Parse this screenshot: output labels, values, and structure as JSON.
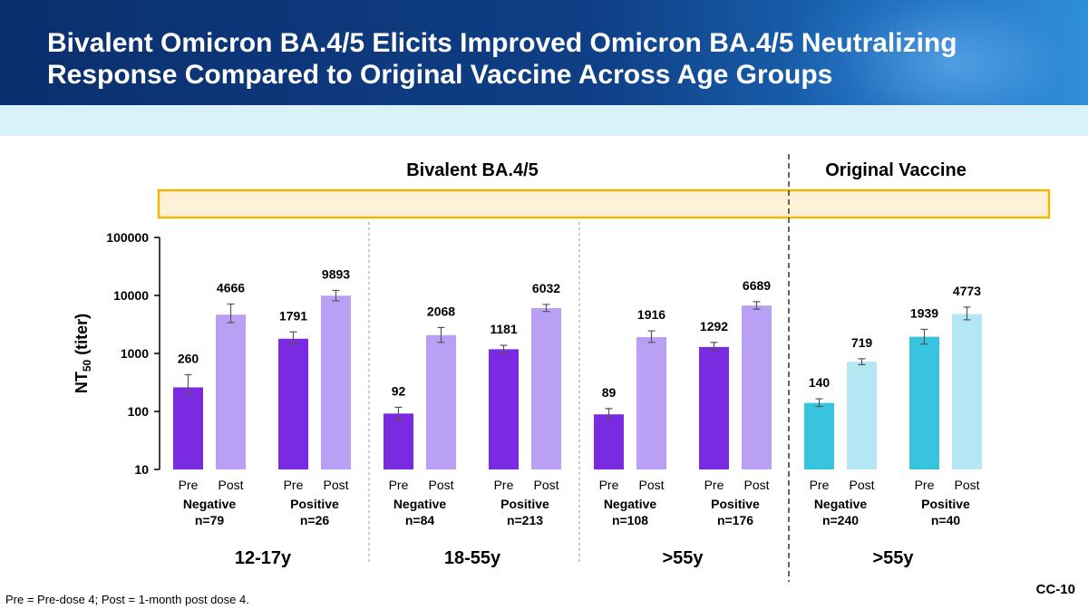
{
  "slide": {
    "title": "Bivalent Omicron BA.4/5 Elicits Improved Omicron BA.4/5 Neutralizing\nResponse Compared to Original Vaccine Across Age Groups",
    "footnote": "Pre = Pre-dose 4; Post = 1-month post dose 4.",
    "code": "CC-10"
  },
  "colors": {
    "bivalent_pre": "#7a2ae0",
    "bivalent_post": "#b9a0f4",
    "original_pre": "#38c3de",
    "original_post": "#b4e7f4",
    "legend_box_fill": "#fdf1d8",
    "legend_box_border": "#f2b800"
  },
  "chart_data": {
    "type": "bar",
    "yscale": "log",
    "ylim": [
      10,
      100000
    ],
    "yticks": [
      "10",
      "100",
      "1000",
      "10000",
      "100000"
    ],
    "ylabel": "NT",
    "ylabel_sub": "50",
    "ylabel_tail": " (titer)",
    "sections": [
      "Bivalent BA.4/5",
      "Original Vaccine"
    ],
    "ages": [
      "12-17y",
      "18-55y",
      ">55y",
      ">55y"
    ],
    "groups": [
      {
        "status": "Negative",
        "n": "n=79",
        "age": 0,
        "vaccine": "bivalent",
        "bars": [
          {
            "label": "Pre",
            "value": 260,
            "display": "260",
            "ci": [
              200,
              430
            ]
          },
          {
            "label": "Post",
            "value": 4666,
            "display": "4666",
            "ci": [
              3400,
              7100
            ]
          }
        ]
      },
      {
        "status": "Positive",
        "n": "n=26",
        "age": 0,
        "vaccine": "bivalent",
        "bars": [
          {
            "label": "Pre",
            "value": 1791,
            "display": "1791",
            "ci": [
              1450,
              2350
            ]
          },
          {
            "label": "Post",
            "value": 9893,
            "display": "9893",
            "ci": [
              8100,
              12200
            ]
          }
        ]
      },
      {
        "status": "Negative",
        "n": "n=84",
        "age": 1,
        "vaccine": "bivalent",
        "bars": [
          {
            "label": "Pre",
            "value": 92,
            "display": "92",
            "ci": [
              73,
              118
            ]
          },
          {
            "label": "Post",
            "value": 2068,
            "display": "2068",
            "ci": [
              1550,
              2800
            ]
          }
        ]
      },
      {
        "status": "Positive",
        "n": "n=213",
        "age": 1,
        "vaccine": "bivalent",
        "bars": [
          {
            "label": "Pre",
            "value": 1181,
            "display": "1181",
            "ci": [
              1030,
              1380
            ]
          },
          {
            "label": "Post",
            "value": 6032,
            "display": "6032",
            "ci": [
              5300,
              7000
            ]
          }
        ]
      },
      {
        "status": "Negative",
        "n": "n=108",
        "age": 2,
        "vaccine": "bivalent",
        "bars": [
          {
            "label": "Pre",
            "value": 89,
            "display": "89",
            "ci": [
              72,
              112
            ]
          },
          {
            "label": "Post",
            "value": 1916,
            "display": "1916",
            "ci": [
              1550,
              2450
            ]
          }
        ]
      },
      {
        "status": "Positive",
        "n": "n=176",
        "age": 2,
        "vaccine": "bivalent",
        "bars": [
          {
            "label": "Pre",
            "value": 1292,
            "display": "1292",
            "ci": [
              1100,
              1550
            ]
          },
          {
            "label": "Post",
            "value": 6689,
            "display": "6689",
            "ci": [
              5800,
              7800
            ]
          }
        ]
      },
      {
        "status": "Negative",
        "n": "n=240",
        "age": 3,
        "vaccine": "original",
        "bars": [
          {
            "label": "Pre",
            "value": 140,
            "display": "140",
            "ci": [
              122,
              165
            ]
          },
          {
            "label": "Post",
            "value": 719,
            "display": "719",
            "ci": [
              640,
              810
            ]
          }
        ]
      },
      {
        "status": "Positive",
        "n": "n=40",
        "age": 3,
        "vaccine": "original",
        "bars": [
          {
            "label": "Pre",
            "value": 1939,
            "display": "1939",
            "ci": [
              1450,
              2600
            ]
          },
          {
            "label": "Post",
            "value": 4773,
            "display": "4773",
            "ci": [
              3800,
              6300
            ]
          }
        ]
      }
    ]
  }
}
